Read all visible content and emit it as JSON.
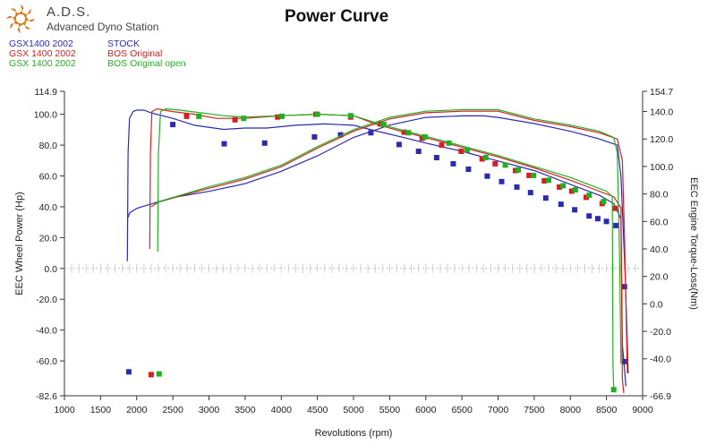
{
  "app": {
    "brand_name": "A.D.S.",
    "brand_subtitle": "Advanced Dyno Station",
    "logo_icon": "sun-flame-logo",
    "colors": {
      "stock": "#2b2bb0",
      "bos_original": "#d42020",
      "bos_open": "#22b022",
      "logo": "#e07010"
    }
  },
  "legend": [
    {
      "run": "GSX1400 2002",
      "config": "STOCK",
      "color": "#2b2bb0"
    },
    {
      "run": "GSX 1400 2002",
      "config": "BOS Original",
      "color": "#d42020"
    },
    {
      "run": "GSX 1400 2002",
      "config": "BOS Original open",
      "color": "#22b022"
    }
  ],
  "chart_data": {
    "type": "line",
    "title": "Power Curve",
    "xlabel": "Revolutions (rpm)",
    "ylabel": "EEC Wheel Power (Hp)",
    "y2label": "EEC Engine Torque-Loss(Nm)",
    "xlim": [
      1000,
      9000
    ],
    "ylim": [
      -82.6,
      114.9
    ],
    "y2lim": [
      -66.9,
      154.7
    ],
    "x_ticks": [
      "1000",
      "1500",
      "2000",
      "2500",
      "3000",
      "3500",
      "4000",
      "4500",
      "5000",
      "5500",
      "6000",
      "6500",
      "7000",
      "7500",
      "8000",
      "8500",
      "9000"
    ],
    "y_ticks": [
      {
        "value": 114.9,
        "label": "114.9"
      },
      {
        "value": 100,
        "label": "100.0"
      },
      {
        "value": 80,
        "label": "80.0"
      },
      {
        "value": 60,
        "label": "60.0"
      },
      {
        "value": 40,
        "label": "40.0"
      },
      {
        "value": 20,
        "label": "20.0"
      },
      {
        "value": 0,
        "label": "0.0"
      },
      {
        "value": -20,
        "label": "-20.0"
      },
      {
        "value": -40,
        "label": "-40.0"
      },
      {
        "value": -60,
        "label": "-60.0"
      },
      {
        "value": -82.6,
        "label": "-82.6"
      }
    ],
    "y2_ticks": [
      {
        "value": 154.7,
        "label": "154.7"
      },
      {
        "value": 140,
        "label": "140.0"
      },
      {
        "value": 120,
        "label": "120.0"
      },
      {
        "value": 100,
        "label": "100.0"
      },
      {
        "value": 80,
        "label": "80.0"
      },
      {
        "value": 60,
        "label": "60.0"
      },
      {
        "value": 40,
        "label": "40.0"
      },
      {
        "value": 20,
        "label": "20.0"
      },
      {
        "value": 0,
        "label": "0.0"
      },
      {
        "value": -20,
        "label": "-20.0"
      },
      {
        "value": -40,
        "label": "-40.0"
      },
      {
        "value": -66.9,
        "label": "-66.9"
      }
    ],
    "grid": "dashed zero line",
    "series": [
      {
        "name": "GSX1400 2002 STOCK",
        "color": "#2b2bb0",
        "power": [
          [
            1880,
            33
          ],
          [
            1900,
            36
          ],
          [
            2000,
            39
          ],
          [
            2500,
            46
          ],
          [
            3000,
            50
          ],
          [
            3500,
            55
          ],
          [
            4000,
            63
          ],
          [
            4500,
            73
          ],
          [
            5000,
            85
          ],
          [
            5500,
            93
          ],
          [
            6000,
            98
          ],
          [
            6500,
            99
          ],
          [
            6800,
            99
          ],
          [
            7000,
            98
          ],
          [
            7500,
            94
          ],
          [
            8000,
            89
          ],
          [
            8400,
            84
          ],
          [
            8650,
            80
          ],
          [
            8700,
            60
          ],
          [
            8760,
            -5
          ],
          [
            8800,
            -68
          ]
        ],
        "torque": [
          [
            1870,
            31
          ],
          [
            1880,
            110
          ],
          [
            1900,
            135
          ],
          [
            1950,
            140
          ],
          [
            2000,
            141
          ],
          [
            2100,
            141
          ],
          [
            2200,
            139
          ],
          [
            2500,
            135
          ],
          [
            2800,
            130
          ],
          [
            3200,
            127
          ],
          [
            3500,
            128
          ],
          [
            3800,
            128
          ],
          [
            4200,
            130
          ],
          [
            4600,
            131
          ],
          [
            5000,
            130
          ],
          [
            5300,
            126
          ],
          [
            5700,
            121
          ],
          [
            6000,
            117
          ],
          [
            6500,
            111
          ],
          [
            7000,
            104
          ],
          [
            7500,
            97
          ],
          [
            8000,
            87
          ],
          [
            8400,
            79
          ],
          [
            8600,
            73
          ],
          [
            8700,
            62
          ],
          [
            8720,
            -30
          ],
          [
            8770,
            -60
          ]
        ],
        "markers": [
          [
            1890,
            -49.5
          ],
          [
            2500,
            130.5
          ],
          [
            3210,
            116.5
          ],
          [
            3770,
            117
          ],
          [
            4460,
            121.5
          ],
          [
            4820,
            123
          ],
          [
            5240,
            124.5
          ],
          [
            5630,
            116
          ],
          [
            5900,
            111
          ],
          [
            6150,
            106.5
          ],
          [
            6380,
            102
          ],
          [
            6590,
            98
          ],
          [
            6850,
            93
          ],
          [
            7050,
            89
          ],
          [
            7260,
            85
          ],
          [
            7450,
            81
          ],
          [
            7660,
            77
          ],
          [
            7870,
            72.5
          ],
          [
            8060,
            68.5
          ],
          [
            8260,
            64
          ],
          [
            8380,
            62
          ],
          [
            8500,
            60
          ],
          [
            8630,
            57
          ],
          [
            8750,
            12.5
          ],
          [
            8760,
            -42
          ]
        ]
      },
      {
        "name": "GSX 1400 2002 BOS Original",
        "color": "#d42020",
        "power": [
          [
            2200,
            40
          ],
          [
            2300,
            43
          ],
          [
            2600,
            47
          ],
          [
            3000,
            52
          ],
          [
            3500,
            58
          ],
          [
            4000,
            66
          ],
          [
            4500,
            78
          ],
          [
            5000,
            89
          ],
          [
            5500,
            97
          ],
          [
            6000,
            101
          ],
          [
            6500,
            102
          ],
          [
            7000,
            102
          ],
          [
            7500,
            96
          ],
          [
            8000,
            92
          ],
          [
            8400,
            88
          ],
          [
            8650,
            84
          ],
          [
            8720,
            70
          ],
          [
            8750,
            20
          ],
          [
            8790,
            -68
          ]
        ],
        "torque": [
          [
            2180,
            40
          ],
          [
            2190,
            110
          ],
          [
            2210,
            140
          ],
          [
            2280,
            142
          ],
          [
            2500,
            140
          ],
          [
            2800,
            138
          ],
          [
            3100,
            135
          ],
          [
            3500,
            135
          ],
          [
            4000,
            137
          ],
          [
            4500,
            138
          ],
          [
            5000,
            137
          ],
          [
            5300,
            131
          ],
          [
            5700,
            125
          ],
          [
            6000,
            121
          ],
          [
            6500,
            114
          ],
          [
            7000,
            107
          ],
          [
            7500,
            99
          ],
          [
            8000,
            90
          ],
          [
            8300,
            84
          ],
          [
            8600,
            78
          ],
          [
            8700,
            70
          ],
          [
            8720,
            -55
          ],
          [
            8740,
            -65
          ]
        ],
        "markers": [
          [
            2200,
            -51.5
          ],
          [
            2690,
            136.5
          ],
          [
            3360,
            134
          ],
          [
            3950,
            136
          ],
          [
            4480,
            138
          ],
          [
            4960,
            136
          ],
          [
            5370,
            131
          ],
          [
            5700,
            125
          ],
          [
            5950,
            120.5
          ],
          [
            6220,
            115.5
          ],
          [
            6490,
            111
          ],
          [
            6780,
            105.5
          ],
          [
            6960,
            102
          ],
          [
            7240,
            97
          ],
          [
            7430,
            93.5
          ],
          [
            7640,
            89.5
          ],
          [
            7850,
            85
          ],
          [
            8020,
            82
          ],
          [
            8220,
            77.5
          ],
          [
            8440,
            73
          ],
          [
            8620,
            69.5
          ]
        ]
      },
      {
        "name": "GSX 1400 2002 BOS Original open",
        "color": "#22b022",
        "power": [
          [
            2300,
            43
          ],
          [
            2500,
            46
          ],
          [
            3000,
            53
          ],
          [
            3500,
            59
          ],
          [
            4000,
            67
          ],
          [
            4500,
            79
          ],
          [
            5000,
            90
          ],
          [
            5500,
            98
          ],
          [
            6000,
            102
          ],
          [
            6500,
            103
          ],
          [
            7000,
            103
          ],
          [
            7500,
            97
          ],
          [
            8000,
            93
          ],
          [
            8400,
            89
          ],
          [
            8600,
            85
          ],
          [
            8650,
            75
          ],
          [
            8680,
            10
          ],
          [
            8700,
            -62
          ]
        ],
        "torque": [
          [
            2290,
            38
          ],
          [
            2300,
            110
          ],
          [
            2330,
            140
          ],
          [
            2400,
            142
          ],
          [
            2600,
            141
          ],
          [
            2900,
            139
          ],
          [
            3200,
            137
          ],
          [
            3500,
            136
          ],
          [
            4000,
            137
          ],
          [
            4500,
            138
          ],
          [
            5000,
            137
          ],
          [
            5300,
            132
          ],
          [
            5700,
            126
          ],
          [
            6000,
            122
          ],
          [
            6500,
            115
          ],
          [
            7000,
            108
          ],
          [
            7500,
            100
          ],
          [
            8000,
            92
          ],
          [
            8300,
            86
          ],
          [
            8500,
            82
          ],
          [
            8580,
            78
          ],
          [
            8590,
            -45
          ],
          [
            8600,
            -62
          ]
        ],
        "markers": [
          [
            2310,
            -51
          ],
          [
            2860,
            136.5
          ],
          [
            3480,
            135
          ],
          [
            4010,
            136.5
          ],
          [
            4500,
            138
          ],
          [
            4960,
            137
          ],
          [
            5420,
            130.5
          ],
          [
            5760,
            124.5
          ],
          [
            5990,
            121.5
          ],
          [
            6320,
            117
          ],
          [
            6570,
            112
          ],
          [
            6830,
            106.5
          ],
          [
            7100,
            101
          ],
          [
            7280,
            97.5
          ],
          [
            7490,
            93.5
          ],
          [
            7700,
            90
          ],
          [
            7900,
            86
          ],
          [
            8070,
            83
          ],
          [
            8260,
            79
          ],
          [
            8460,
            74.5
          ],
          [
            8600,
            -62.5
          ]
        ]
      }
    ]
  }
}
